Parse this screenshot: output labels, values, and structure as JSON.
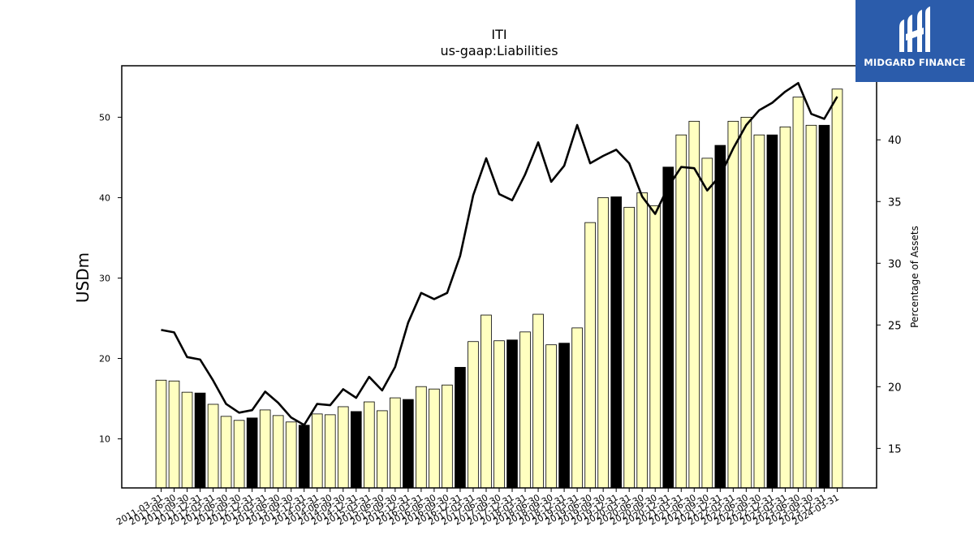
{
  "chart_data": {
    "type": "bar",
    "title": "ITI",
    "subtitle": "us-gaap:Liabilities",
    "ylabel": "USDm",
    "ylabel_right": "Percentage of Assets",
    "ylim": [
      3.9,
      56.4
    ],
    "ylim_right": [
      11.8,
      46.0
    ],
    "yticks": [
      10,
      20,
      30,
      40,
      50
    ],
    "yticks_right": [
      15,
      20,
      25,
      30,
      35,
      40
    ],
    "colors": {
      "bar_default": "#ffffc0",
      "bar_highlight": "#000000",
      "line": "#000000",
      "edge": "#000000"
    },
    "categories": [
      "2011-03-31",
      "2011-06-30",
      "2011-09-30",
      "2011-12-31",
      "2012-03-31",
      "2012-06-30",
      "2012-09-30",
      "2012-12-31",
      "2013-03-31",
      "2013-06-30",
      "2013-09-30",
      "2013-12-31",
      "2014-03-31",
      "2014-06-30",
      "2014-09-30",
      "2014-12-31",
      "2015-03-31",
      "2015-06-30",
      "2015-09-30",
      "2015-12-31",
      "2016-03-31",
      "2016-06-30",
      "2016-09-30",
      "2016-12-31",
      "2017-03-31",
      "2017-06-30",
      "2017-09-30",
      "2017-12-31",
      "2018-03-31",
      "2018-06-30",
      "2018-09-30",
      "2018-12-31",
      "2019-03-31",
      "2019-06-30",
      "2019-09-30",
      "2019-12-31",
      "2020-03-31",
      "2020-06-30",
      "2020-09-30",
      "2020-12-31",
      "2021-03-31",
      "2021-06-30",
      "2021-09-30",
      "2021-12-31",
      "2022-03-31",
      "2022-06-30",
      "2022-09-30",
      "2022-12-31",
      "2023-03-31",
      "2023-06-30",
      "2023-09-30",
      "2023-12-31",
      "2024-03-31"
    ],
    "series": [
      {
        "type": "bar",
        "values": [
          17.3,
          17.2,
          15.8,
          15.7,
          14.3,
          12.8,
          12.3,
          12.6,
          13.6,
          12.9,
          12.1,
          11.7,
          13.1,
          13.0,
          14.0,
          13.4,
          14.6,
          13.5,
          15.1,
          14.9,
          16.5,
          16.2,
          16.7,
          18.9,
          22.1,
          25.4,
          22.2,
          22.3,
          23.3,
          25.5,
          21.7,
          21.9,
          23.8,
          36.9,
          40.0,
          40.1,
          38.8,
          40.6,
          39.0,
          43.8,
          47.8,
          49.5,
          44.9,
          46.5,
          49.5,
          50.0,
          47.8,
          47.8,
          48.8,
          52.5,
          49.0,
          49.0,
          53.5
        ],
        "highlight": [
          false,
          false,
          false,
          true,
          false,
          false,
          false,
          true,
          false,
          false,
          false,
          true,
          false,
          false,
          false,
          true,
          false,
          false,
          false,
          true,
          false,
          false,
          false,
          true,
          false,
          false,
          false,
          true,
          false,
          false,
          false,
          true,
          false,
          false,
          false,
          true,
          false,
          false,
          false,
          true,
          false,
          false,
          false,
          true,
          false,
          false,
          false,
          true,
          false,
          false,
          false,
          true,
          false
        ]
      },
      {
        "type": "line",
        "axis": "right",
        "values": [
          24.6,
          24.4,
          22.4,
          22.2,
          20.5,
          18.6,
          17.9,
          18.1,
          19.6,
          18.7,
          17.5,
          16.9,
          18.6,
          18.5,
          19.8,
          19.1,
          20.8,
          19.7,
          21.6,
          25.2,
          27.6,
          27.1,
          27.6,
          30.6,
          35.5,
          38.5,
          35.6,
          35.1,
          37.2,
          39.8,
          36.6,
          37.9,
          41.2,
          38.1,
          38.7,
          39.2,
          38.1,
          35.4,
          34.0,
          36.2,
          37.8,
          37.7,
          35.9,
          37.1,
          39.3,
          41.2,
          42.4,
          43.0,
          43.9,
          44.6,
          42.1,
          41.7,
          43.5
        ]
      }
    ]
  },
  "logo": {
    "text": "MIDGARD FINANCE"
  }
}
